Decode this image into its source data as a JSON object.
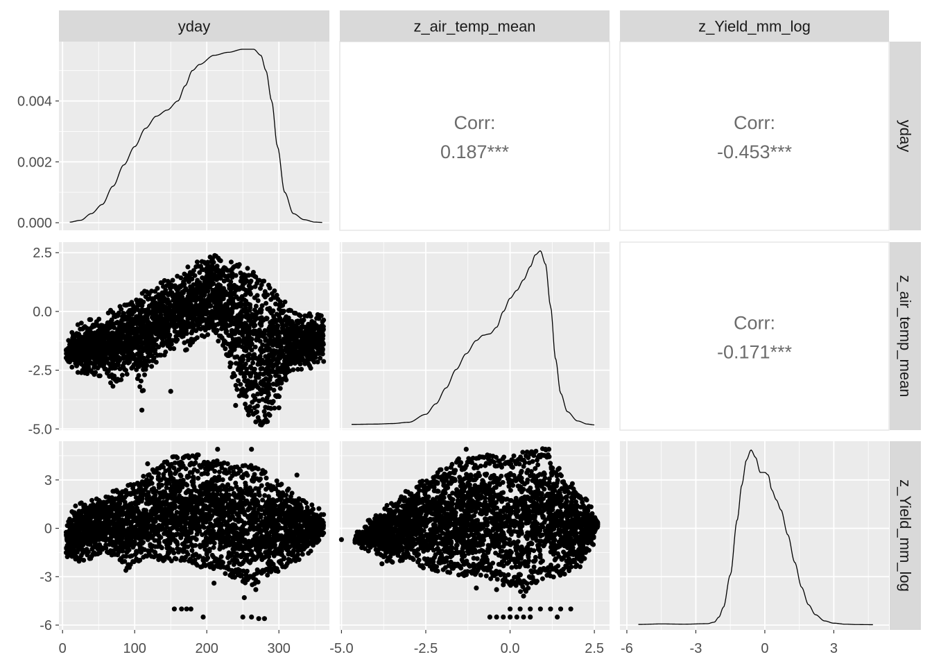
{
  "chart_data": {
    "type": "scatter",
    "variables": [
      "yday",
      "z_air_temp_mean",
      "z_Yield_mm_log"
    ],
    "colors": {
      "panel_bg": "#ebebeb",
      "strip_bg": "#d9d9d9",
      "grid": "#ffffff",
      "ink": "#000000",
      "corr_text": "#6b6b6b",
      "tick_text": "#4d4d4d"
    },
    "axes": {
      "yday": {
        "range": [
          -5,
          370
        ],
        "ticks": [
          0,
          100,
          200,
          300
        ],
        "tick_labels": [
          "0",
          "100",
          "200",
          "300"
        ]
      },
      "z_air_temp_mean": {
        "range": [
          -5.05,
          2.95
        ],
        "ticks": [
          -5.0,
          -2.5,
          0.0,
          2.5
        ],
        "tick_labels": [
          "-5.0",
          "-2.5",
          "0.0",
          "2.5"
        ]
      },
      "z_Yield_mm_log": {
        "range": [
          -6.3,
          5.4
        ],
        "ticks": [
          -6,
          -3,
          0,
          3
        ],
        "tick_labels": [
          "-6",
          "-3",
          "0",
          "3"
        ]
      }
    },
    "density_axis": {
      "range": [
        -0.00025,
        0.00595
      ],
      "ticks": [
        0.0,
        0.002,
        0.004
      ],
      "tick_labels": [
        "0.000",
        "0.002",
        "0.004"
      ]
    },
    "correlations": [
      {
        "row": 0,
        "col": 1,
        "label": "Corr:",
        "value": "0.187***"
      },
      {
        "row": 0,
        "col": 2,
        "label": "Corr:",
        "value": "-0.453***"
      },
      {
        "row": 1,
        "col": 2,
        "label": "Corr:",
        "value": "-0.171***"
      }
    ],
    "densities": {
      "yday": [
        [
          10,
          2e-05
        ],
        [
          25,
          8e-05
        ],
        [
          40,
          0.0003
        ],
        [
          55,
          0.0006
        ],
        [
          70,
          0.0012
        ],
        [
          85,
          0.0019
        ],
        [
          100,
          0.0025
        ],
        [
          115,
          0.0031
        ],
        [
          130,
          0.0035
        ],
        [
          145,
          0.0037
        ],
        [
          160,
          0.004
        ],
        [
          170,
          0.0045
        ],
        [
          180,
          0.005
        ],
        [
          190,
          0.0052
        ],
        [
          210,
          0.0055
        ],
        [
          230,
          0.0056
        ],
        [
          250,
          0.0057
        ],
        [
          265,
          0.0057
        ],
        [
          275,
          0.0055
        ],
        [
          282,
          0.005
        ],
        [
          290,
          0.004
        ],
        [
          298,
          0.0025
        ],
        [
          308,
          0.001
        ],
        [
          320,
          0.0003
        ],
        [
          335,
          0.0001
        ],
        [
          350,
          2e-05
        ],
        [
          360,
          1e-05
        ]
      ],
      "z_air_temp_mean": [
        [
          -4.7,
          0.002
        ],
        [
          -4.0,
          0.003
        ],
        [
          -3.5,
          0.005
        ],
        [
          -3.0,
          0.01
        ],
        [
          -2.5,
          0.04
        ],
        [
          -2.2,
          0.08
        ],
        [
          -1.9,
          0.14
        ],
        [
          -1.6,
          0.21
        ],
        [
          -1.3,
          0.27
        ],
        [
          -1.0,
          0.32
        ],
        [
          -0.8,
          0.34
        ],
        [
          -0.6,
          0.345
        ],
        [
          -0.4,
          0.37
        ],
        [
          -0.2,
          0.43
        ],
        [
          0.0,
          0.48
        ],
        [
          0.2,
          0.51
        ],
        [
          0.4,
          0.55
        ],
        [
          0.6,
          0.6
        ],
        [
          0.75,
          0.645
        ],
        [
          0.9,
          0.66
        ],
        [
          1.05,
          0.61
        ],
        [
          1.2,
          0.45
        ],
        [
          1.35,
          0.25
        ],
        [
          1.5,
          0.12
        ],
        [
          1.7,
          0.05
        ],
        [
          2.0,
          0.015
        ],
        [
          2.3,
          0.003
        ],
        [
          2.5,
          0.0
        ]
      ],
      "z_Yield_mm_log": [
        [
          -5.5,
          0.001
        ],
        [
          -4.5,
          0.003
        ],
        [
          -3.5,
          0.002
        ],
        [
          -2.5,
          0.004
        ],
        [
          -2.2,
          0.01
        ],
        [
          -2.0,
          0.03
        ],
        [
          -1.8,
          0.07
        ],
        [
          -1.5,
          0.2
        ],
        [
          -1.2,
          0.42
        ],
        [
          -1.0,
          0.56
        ],
        [
          -0.8,
          0.66
        ],
        [
          -0.6,
          0.7
        ],
        [
          -0.4,
          0.67
        ],
        [
          -0.2,
          0.61
        ],
        [
          0.0,
          0.61
        ],
        [
          0.15,
          0.6
        ],
        [
          0.3,
          0.54
        ],
        [
          0.5,
          0.5
        ],
        [
          0.7,
          0.46
        ],
        [
          1.0,
          0.36
        ],
        [
          1.3,
          0.25
        ],
        [
          1.6,
          0.15
        ],
        [
          1.9,
          0.08
        ],
        [
          2.2,
          0.04
        ],
        [
          2.6,
          0.015
        ],
        [
          3.0,
          0.006
        ],
        [
          3.5,
          0.002
        ],
        [
          4.0,
          0.0005
        ],
        [
          4.7,
          0.0
        ]
      ]
    },
    "scatter_yday_vs_air_temp": {
      "x_range": [
        5,
        362
      ],
      "lower_envelope": [
        [
          5,
          -1.8
        ],
        [
          20,
          -2.3
        ],
        [
          40,
          -2.5
        ],
        [
          60,
          -2.4
        ],
        [
          70,
          -2.9
        ],
        [
          80,
          -2.6
        ],
        [
          100,
          -2.2
        ],
        [
          110,
          -3.2
        ],
        [
          120,
          -2.1
        ],
        [
          140,
          -1.6
        ],
        [
          160,
          -1.2
        ],
        [
          170,
          -1.4
        ],
        [
          190,
          -0.8
        ],
        [
          205,
          -0.7
        ],
        [
          215,
          -1.0
        ],
        [
          225,
          -1.5
        ],
        [
          235,
          -2.5
        ],
        [
          245,
          -3.3
        ],
        [
          255,
          -3.9
        ],
        [
          265,
          -4.2
        ],
        [
          275,
          -4.6
        ],
        [
          285,
          -4.6
        ],
        [
          295,
          -3.8
        ],
        [
          305,
          -3.0
        ],
        [
          320,
          -2.3
        ],
        [
          340,
          -2.2
        ],
        [
          355,
          -2.0
        ],
        [
          362,
          -1.9
        ]
      ],
      "upper_envelope": [
        [
          5,
          -1.6
        ],
        [
          15,
          -1.0
        ],
        [
          25,
          -0.8
        ],
        [
          40,
          -0.6
        ],
        [
          55,
          -0.6
        ],
        [
          70,
          -0.2
        ],
        [
          85,
          0.0
        ],
        [
          100,
          0.3
        ],
        [
          120,
          0.7
        ],
        [
          140,
          1.0
        ],
        [
          160,
          1.2
        ],
        [
          175,
          1.6
        ],
        [
          185,
          1.8
        ],
        [
          200,
          2.0
        ],
        [
          212,
          2.2
        ],
        [
          222,
          1.9
        ],
        [
          232,
          1.8
        ],
        [
          245,
          1.7
        ],
        [
          260,
          1.5
        ],
        [
          275,
          1.2
        ],
        [
          290,
          0.8
        ],
        [
          305,
          0.2
        ],
        [
          320,
          -0.3
        ],
        [
          335,
          -0.4
        ],
        [
          350,
          -0.4
        ],
        [
          362,
          -0.5
        ]
      ],
      "outliers": [
        [
          110,
          -4.2
        ],
        [
          150,
          -3.4
        ],
        [
          240,
          -4.0
        ],
        [
          258,
          -4.4
        ],
        [
          268,
          -4.7
        ],
        [
          282,
          -4.6
        ],
        [
          285,
          -4.1
        ],
        [
          300,
          -4.1
        ],
        [
          360,
          -0.6
        ],
        [
          8,
          -1.9
        ]
      ]
    },
    "scatter_yday_vs_yield": {
      "x_range": [
        5,
        362
      ],
      "lower_envelope": [
        [
          5,
          -1.5
        ],
        [
          20,
          -1.7
        ],
        [
          40,
          -1.5
        ],
        [
          60,
          -1.2
        ],
        [
          80,
          -1.6
        ],
        [
          90,
          -2.5
        ],
        [
          100,
          -1.8
        ],
        [
          120,
          -1.4
        ],
        [
          140,
          -1.8
        ],
        [
          160,
          -1.6
        ],
        [
          180,
          -1.9
        ],
        [
          200,
          -2.2
        ],
        [
          220,
          -2.4
        ],
        [
          240,
          -2.8
        ],
        [
          260,
          -3.2
        ],
        [
          270,
          -3.0
        ],
        [
          285,
          -2.6
        ],
        [
          300,
          -2.4
        ],
        [
          320,
          -1.8
        ],
        [
          340,
          -1.3
        ],
        [
          355,
          -0.6
        ],
        [
          362,
          0.0
        ]
      ],
      "upper_envelope": [
        [
          5,
          0.0
        ],
        [
          20,
          1.2
        ],
        [
          40,
          1.4
        ],
        [
          60,
          1.8
        ],
        [
          80,
          2.1
        ],
        [
          100,
          2.5
        ],
        [
          120,
          3.2
        ],
        [
          140,
          3.8
        ],
        [
          160,
          4.2
        ],
        [
          180,
          4.3
        ],
        [
          200,
          4.0
        ],
        [
          220,
          3.8
        ],
        [
          240,
          3.5
        ],
        [
          260,
          3.6
        ],
        [
          275,
          3.3
        ],
        [
          290,
          2.8
        ],
        [
          305,
          2.4
        ],
        [
          320,
          1.9
        ],
        [
          340,
          1.3
        ],
        [
          355,
          0.9
        ],
        [
          362,
          0.5
        ]
      ],
      "outliers": [
        [
          155,
          -5.0
        ],
        [
          165,
          -5.0
        ],
        [
          172,
          -5.0
        ],
        [
          178,
          -5.0
        ],
        [
          195,
          -5.5
        ],
        [
          250,
          -5.5
        ],
        [
          262,
          -5.5
        ],
        [
          272,
          -5.6
        ],
        [
          280,
          -5.6
        ],
        [
          118,
          4.0
        ],
        [
          215,
          4.9
        ],
        [
          262,
          4.9
        ],
        [
          325,
          3.3
        ],
        [
          8,
          -1.6
        ],
        [
          12,
          -0.5
        ],
        [
          210,
          -3.4
        ],
        [
          252,
          -4.3
        ],
        [
          268,
          -3.8
        ]
      ]
    },
    "scatter_air_temp_vs_yield": {
      "x_range": [
        -4.6,
        2.6
      ],
      "lower_envelope": [
        [
          -4.6,
          -0.8
        ],
        [
          -4.0,
          -1.3
        ],
        [
          -3.5,
          -1.8
        ],
        [
          -3.0,
          -1.6
        ],
        [
          -2.5,
          -2.2
        ],
        [
          -2.0,
          -2.3
        ],
        [
          -1.5,
          -2.6
        ],
        [
          -1.0,
          -2.5
        ],
        [
          -0.5,
          -3.0
        ],
        [
          0.0,
          -3.2
        ],
        [
          0.4,
          -3.6
        ],
        [
          0.8,
          -3.0
        ],
        [
          1.2,
          -2.7
        ],
        [
          1.6,
          -2.5
        ],
        [
          2.0,
          -2.2
        ],
        [
          2.4,
          -1.0
        ],
        [
          2.6,
          0.0
        ]
      ],
      "upper_envelope": [
        [
          -4.6,
          -0.6
        ],
        [
          -4.0,
          0.5
        ],
        [
          -3.5,
          1.2
        ],
        [
          -3.0,
          2.0
        ],
        [
          -2.5,
          2.8
        ],
        [
          -2.0,
          3.4
        ],
        [
          -1.5,
          4.0
        ],
        [
          -1.0,
          4.1
        ],
        [
          -0.5,
          4.2
        ],
        [
          0.0,
          4.1
        ],
        [
          0.5,
          4.4
        ],
        [
          1.0,
          4.6
        ],
        [
          1.4,
          3.5
        ],
        [
          1.8,
          2.5
        ],
        [
          2.2,
          1.5
        ],
        [
          2.5,
          0.8
        ],
        [
          2.6,
          0.4
        ]
      ],
      "outliers": [
        [
          -1.3,
          4.9
        ],
        [
          -0.6,
          4.5
        ],
        [
          1.05,
          4.9
        ],
        [
          1.15,
          4.9
        ],
        [
          -0.2,
          -3.5
        ],
        [
          -0.4,
          -3.8
        ],
        [
          -1.0,
          -3.7
        ],
        [
          0.4,
          -4.2
        ],
        [
          -5.0,
          -0.7
        ],
        [
          -4.4,
          -1.2
        ],
        [
          -4.2,
          -1.4
        ],
        [
          -3.8,
          -2.2
        ],
        [
          -0.6,
          -5.5
        ],
        [
          -0.4,
          -5.5
        ],
        [
          -0.2,
          -5.5
        ],
        [
          0.0,
          -5.5
        ],
        [
          0.2,
          -5.5
        ],
        [
          0.4,
          -5.5
        ],
        [
          0.6,
          -5.5
        ],
        [
          1.4,
          -5.5
        ],
        [
          0.0,
          -5.0
        ],
        [
          0.3,
          -5.0
        ],
        [
          0.6,
          -5.0
        ],
        [
          0.9,
          -5.0
        ],
        [
          1.2,
          -5.0
        ],
        [
          1.5,
          -5.0
        ],
        [
          1.8,
          -5.0
        ]
      ]
    }
  }
}
